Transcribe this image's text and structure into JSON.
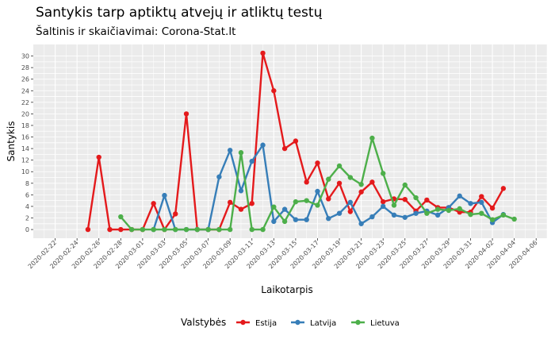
{
  "chart_data": {
    "type": "line",
    "title": "Santykis tarp aptiktų atvejų ir atliktų testų",
    "subtitle": "Šaltinis ir skaičiavimai: Corona-Stat.lt",
    "xlabel": "Laikotarpis",
    "ylabel": "Santykis",
    "xlim": [
      "2020-02-20",
      "2020-04-07"
    ],
    "ylim": [
      -1.5,
      32
    ],
    "y_ticks": [
      0,
      1,
      2,
      3,
      4,
      5,
      6,
      7,
      8,
      9,
      10,
      11,
      12,
      13,
      14,
      15,
      16,
      17,
      18,
      19,
      20,
      21,
      22,
      23,
      24,
      25,
      26,
      27,
      28,
      29,
      30
    ],
    "y_tick_labels": [
      "0",
      "2",
      "4",
      "6",
      "8",
      "10",
      "12",
      "14",
      "16",
      "18",
      "20",
      "22",
      "24",
      "26",
      "28",
      "30"
    ],
    "x_tick_labels": [
      "2020-02-22",
      "2020-02-24",
      "2020-02-26",
      "2020-02-28",
      "2020-03-01",
      "2020-03-03",
      "2020-03-05",
      "2020-03-07",
      "2020-03-09",
      "2020-03-11",
      "2020-03-13",
      "2020-03-15",
      "2020-03-17",
      "2020-03-19",
      "2020-03-21",
      "2020-03-23",
      "2020-03-25",
      "2020-03-27",
      "2020-03-29",
      "2020-03-31",
      "2020-04-02",
      "2020-04-04",
      "2020-04-06"
    ],
    "grid": true,
    "legend_title": "Valstybės",
    "legend_position": "bottom",
    "series": [
      {
        "name": "Estija",
        "color": "#e41a1c",
        "x": [
          "2020-02-25",
          "2020-02-26",
          "2020-02-27",
          "2020-02-28",
          "2020-02-29",
          "2020-03-01",
          "2020-03-02",
          "2020-03-03",
          "2020-03-04",
          "2020-03-05",
          "2020-03-06",
          "2020-03-07",
          "2020-03-08",
          "2020-03-09",
          "2020-03-10",
          "2020-03-11",
          "2020-03-12",
          "2020-03-13",
          "2020-03-14",
          "2020-03-15",
          "2020-03-16",
          "2020-03-17",
          "2020-03-18",
          "2020-03-19",
          "2020-03-20",
          "2020-03-21",
          "2020-03-22",
          "2020-03-23",
          "2020-03-24",
          "2020-03-25",
          "2020-03-26",
          "2020-03-27",
          "2020-03-28",
          "2020-03-29",
          "2020-03-30",
          "2020-03-31",
          "2020-04-01",
          "2020-04-02",
          "2020-04-03"
        ],
        "y": [
          0,
          12.5,
          0,
          0,
          0,
          0,
          4.5,
          0,
          2.7,
          20,
          0,
          0,
          0,
          4.7,
          3.5,
          4.5,
          30.5,
          24,
          14,
          15.3,
          8.2,
          11.5,
          5.3,
          8,
          3.1,
          6.5,
          8.2,
          4.8,
          5.3,
          5.2,
          3.2,
          5.1,
          3.8,
          3.8,
          3,
          3,
          5.7,
          3.7,
          7.1
        ]
      },
      {
        "name": "Latvija",
        "color": "#377eb8",
        "x": [
          "2020-03-02",
          "2020-03-03",
          "2020-03-04",
          "2020-03-05",
          "2020-03-06",
          "2020-03-07",
          "2020-03-08",
          "2020-03-09",
          "2020-03-10",
          "2020-03-11",
          "2020-03-12",
          "2020-03-13",
          "2020-03-14",
          "2020-03-15",
          "2020-03-16",
          "2020-03-17",
          "2020-03-18",
          "2020-03-19",
          "2020-03-20",
          "2020-03-21",
          "2020-03-22",
          "2020-03-23",
          "2020-03-24",
          "2020-03-25",
          "2020-03-26",
          "2020-03-27",
          "2020-03-28",
          "2020-03-29",
          "2020-03-30",
          "2020-03-31",
          "2020-04-01",
          "2020-04-02",
          "2020-04-03"
        ],
        "y": [
          0,
          5.9,
          0,
          0,
          0,
          0,
          9.1,
          13.7,
          6.7,
          11.8,
          14.6,
          1.4,
          3.5,
          1.7,
          1.7,
          6.6,
          1.9,
          2.8,
          4.7,
          1,
          2.2,
          4,
          2.5,
          2.1,
          2.8,
          3.2,
          2.5,
          3.8,
          5.8,
          4.5,
          4.7,
          1.2,
          2.6
        ]
      },
      {
        "name": "Lietuva",
        "color": "#4daf4a",
        "x": [
          "2020-02-28",
          "2020-02-29",
          "2020-03-01",
          "2020-03-02",
          "2020-03-03",
          "2020-03-04",
          "2020-03-05",
          "2020-03-06",
          "2020-03-07",
          "2020-03-08",
          "2020-03-09",
          "2020-03-10",
          "2020-03-11",
          "2020-03-12",
          "2020-03-13",
          "2020-03-14",
          "2020-03-15",
          "2020-03-16",
          "2020-03-17",
          "2020-03-18",
          "2020-03-19",
          "2020-03-20",
          "2020-03-21",
          "2020-03-22",
          "2020-03-23",
          "2020-03-24",
          "2020-03-25",
          "2020-03-26",
          "2020-03-27",
          "2020-03-28",
          "2020-03-29",
          "2020-03-30",
          "2020-03-31",
          "2020-04-01",
          "2020-04-02",
          "2020-04-03",
          "2020-04-04"
        ],
        "y": [
          2.2,
          0,
          0,
          0,
          0,
          0,
          0,
          0,
          0,
          0,
          0,
          13.3,
          0,
          0,
          3.9,
          1.4,
          4.8,
          5,
          4.2,
          8.7,
          11,
          9,
          7.8,
          15.8,
          9.7,
          4.2,
          7.7,
          5.5,
          2.8,
          3.5,
          3.3,
          3.6,
          2.6,
          2.8,
          1.7,
          2.5,
          1.8
        ]
      }
    ]
  }
}
